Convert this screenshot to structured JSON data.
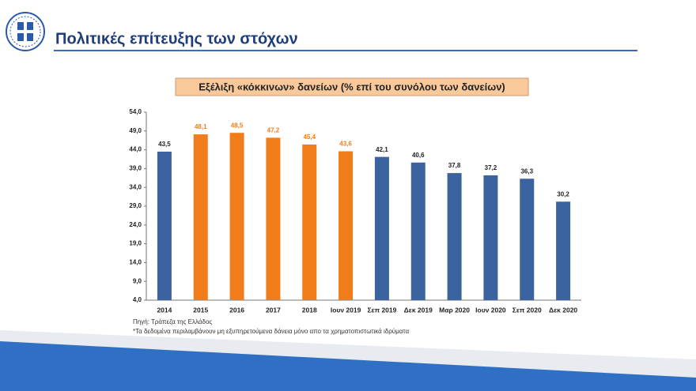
{
  "header": {
    "title": "Πολιτικές επίτευξης των στόχων"
  },
  "chart_data": {
    "type": "bar",
    "title": "Εξέλιξη «κόκκινων» δανείων (% επί του συνόλου των δανείων)",
    "categories": [
      "2014",
      "2015",
      "2016",
      "2017",
      "2018",
      "Ιουν 2019",
      "Σεπ 2019",
      "Δεκ 2019",
      "Μαρ 2020",
      "Ιουν 2020",
      "Σεπ 2020",
      "Δεκ 2020"
    ],
    "values": [
      43.5,
      48.1,
      48.5,
      47.2,
      45.4,
      43.6,
      42.1,
      40.6,
      37.8,
      37.2,
      36.3,
      30.2
    ],
    "value_labels": [
      "43,5",
      "48,1",
      "48,5",
      "47,2",
      "45,4",
      "43,6",
      "42,1",
      "40,6",
      "37,8",
      "37,2",
      "36,3",
      "30,2"
    ],
    "colors": [
      "#3b63a0",
      "#f07d1a",
      "#f07d1a",
      "#f07d1a",
      "#f07d1a",
      "#f07d1a",
      "#3b63a0",
      "#3b63a0",
      "#3b63a0",
      "#3b63a0",
      "#3b63a0",
      "#3b63a0"
    ],
    "value_label_colors": [
      "#222222",
      "#f07d1a",
      "#f07d1a",
      "#f07d1a",
      "#f07d1a",
      "#f07d1a",
      "#222222",
      "#222222",
      "#222222",
      "#222222",
      "#222222",
      "#222222"
    ],
    "ylim": [
      4,
      54
    ],
    "yticks": [
      {
        "value": 4,
        "label": "4,0"
      },
      {
        "value": 9,
        "label": "9,0"
      },
      {
        "value": 14,
        "label": "14,0"
      },
      {
        "value": 19,
        "label": "19,0"
      },
      {
        "value": 24,
        "label": "24,0"
      },
      {
        "value": 29,
        "label": "29,0"
      },
      {
        "value": 34,
        "label": "34,0"
      },
      {
        "value": 39,
        "label": "39,0"
      },
      {
        "value": 44,
        "label": "44,0"
      },
      {
        "value": 49,
        "label": "49,0"
      },
      {
        "value": 54,
        "label": "54,0"
      }
    ],
    "source": "Πηγή: Τράπεζα της Ελλάδος",
    "note": "*Τα δεδομένα περιλαμβάνουν μη εξυπηρετούμενα δάνεια μόνο απο τα χρηματοπιστωτικά ιδρύματα"
  }
}
